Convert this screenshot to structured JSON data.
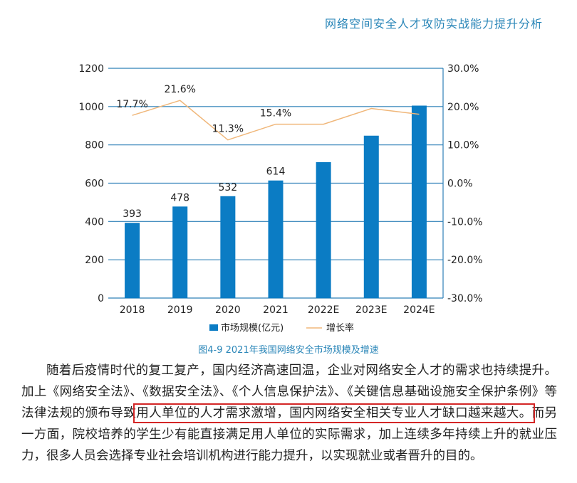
{
  "header": {
    "title": "网络空间安全人才攻防实战能力提升分析"
  },
  "chart_data": {
    "type": "bar",
    "categories": [
      "2018",
      "2019",
      "2020",
      "2021",
      "2022E",
      "2023E",
      "2024E"
    ],
    "series": [
      {
        "name": "市场规模(亿元)",
        "type": "bar",
        "axis": "left",
        "values": [
          393,
          478,
          532,
          614,
          710,
          848,
          1005
        ],
        "labels": [
          "393",
          "478",
          "532",
          "614",
          null,
          null,
          null
        ],
        "color": "#0b7cc4"
      },
      {
        "name": "增长率",
        "type": "line",
        "axis": "right",
        "values": [
          17.7,
          21.6,
          11.3,
          15.4,
          15.4,
          19.5,
          18.0
        ],
        "labels": [
          "17.7%",
          "21.6%",
          "11.3%",
          "15.4%",
          null,
          null,
          null
        ],
        "color": "#f0b77a"
      }
    ],
    "yleft": {
      "ticks": [
        "0",
        "200",
        "400",
        "600",
        "800",
        "1000",
        "1200"
      ],
      "range": [
        0,
        1200
      ]
    },
    "yright": {
      "ticks": [
        "-30.0%",
        "-20.0%",
        "-10.0%",
        "0.0%",
        "10.0%",
        "20.0%",
        "30.0%"
      ],
      "range": [
        -30,
        30
      ]
    },
    "grid": true,
    "legend": "bottom"
  },
  "caption": "图4-9  2021年我国网络安全市场规模及增速",
  "paragraph": {
    "part1": "随着后疫情时代的复工复产，国内经济高速回温，企业对网络安全人才的需求也持续提升。加上《网络安全法》、《数据安全法》、《个人信息保护法》、《关键信息基础设施安全保护条例》等法律法规的颁布导致",
    "highlight": "用人单位的人才需求激增，国内网络安全相关专业人才缺口越来越大。",
    "part2": "而另一方面，院校培养的学生少有能直接满足用人单位的实际需求，加上连续多年持续上升的就业压力，很多人员会选择专业社会培训机构进行能力提升，以实现就业或者晋升的目的。"
  }
}
